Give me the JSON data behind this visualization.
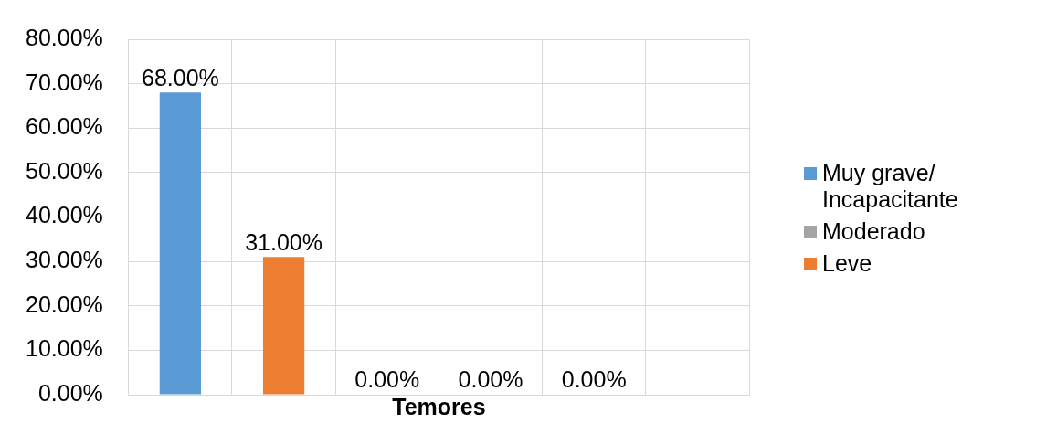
{
  "chart_data": {
    "type": "bar",
    "xlabel": "Temores",
    "categories": [
      null,
      null,
      null,
      null,
      null,
      null
    ],
    "series": [
      {
        "name": "Muy grave/ Incapacitante",
        "color": "#5b9bd5",
        "values": [
          68,
          null,
          null,
          null,
          null,
          null
        ],
        "value_labels": [
          "68.00%",
          null,
          null,
          null,
          null,
          null
        ]
      },
      {
        "name": "Moderado",
        "color": "#a5a5a5",
        "values": [
          null,
          null,
          0,
          0,
          0,
          null
        ],
        "value_labels": [
          null,
          null,
          "0.00%",
          "0.00%",
          "0.00%",
          null
        ]
      },
      {
        "name": "Leve",
        "color": "#ed7d31",
        "values": [
          null,
          31,
          null,
          null,
          null,
          null
        ],
        "value_labels": [
          null,
          "31.00%",
          null,
          null,
          null,
          null
        ]
      }
    ],
    "ylim": [
      0,
      80
    ],
    "yticks": [
      {
        "value": 0,
        "label": "0.00%"
      },
      {
        "value": 10,
        "label": "10.00%"
      },
      {
        "value": 20,
        "label": "20.00%"
      },
      {
        "value": 30,
        "label": "30.00%"
      },
      {
        "value": 40,
        "label": "40.00%"
      },
      {
        "value": 50,
        "label": "50.00%"
      },
      {
        "value": 60,
        "label": "60.00%"
      },
      {
        "value": 70,
        "label": "70.00%"
      },
      {
        "value": 80,
        "label": "80.00%"
      }
    ],
    "grid": true,
    "legend": "right"
  }
}
